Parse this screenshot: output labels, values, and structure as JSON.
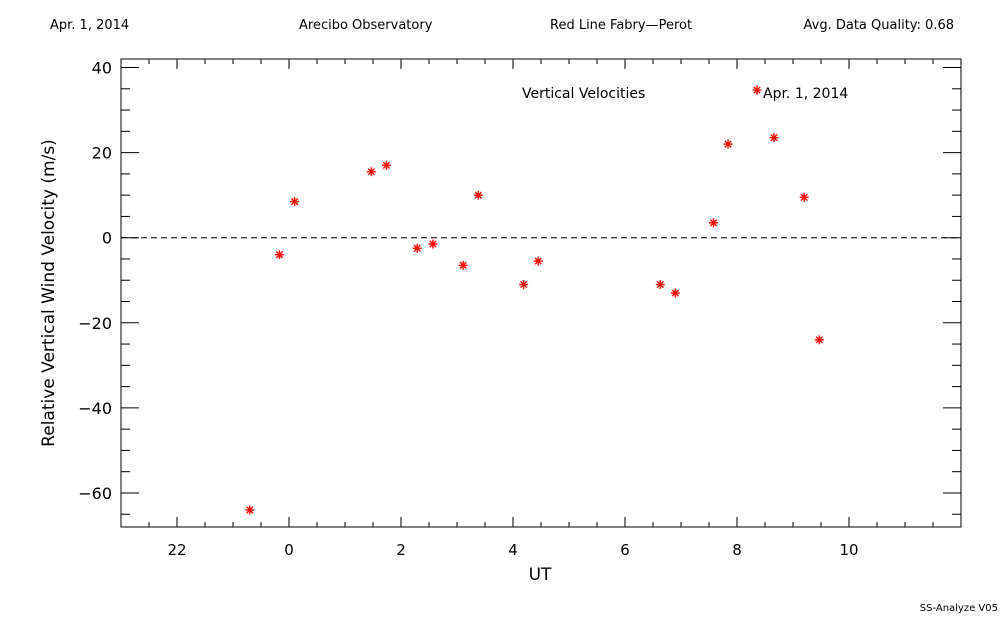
{
  "header": {
    "date": "Apr. 1, 2014",
    "site": "Arecibo Observatory",
    "instrument": "Red Line Fabry—Perot",
    "quality": "Avg. Data Quality: 0.68"
  },
  "footer": {
    "version": "SS-Analyze V05"
  },
  "chart_data": {
    "type": "scatter",
    "title": "Vertical Velocities",
    "xlabel": "UT",
    "ylabel": "Relative Vertical Wind Velocity (m/s)",
    "xlim": [
      21.0,
      36.0
    ],
    "ylim": [
      -68,
      42
    ],
    "x_ticks": [
      22,
      24,
      26,
      28,
      30,
      32,
      34
    ],
    "x_tick_labels": [
      "22",
      "0",
      "2",
      "4",
      "6",
      "8",
      "10"
    ],
    "y_ticks": [
      -60,
      -40,
      -20,
      0,
      20,
      40
    ],
    "y_tick_labels": [
      "−60",
      "−40",
      "−20",
      "0",
      "20",
      "40"
    ],
    "zero_line": true,
    "series": [
      {
        "name": "Apr. 1, 2014",
        "color": "#ff0000",
        "marker": "asterisk",
        "points": [
          {
            "x": 23.3,
            "y": -64
          },
          {
            "x": 23.83,
            "y": -4
          },
          {
            "x": 24.1,
            "y": 8.5
          },
          {
            "x": 25.47,
            "y": 15.5
          },
          {
            "x": 25.74,
            "y": 17
          },
          {
            "x": 26.29,
            "y": -2.5
          },
          {
            "x": 26.57,
            "y": -1.5
          },
          {
            "x": 27.11,
            "y": -6.5
          },
          {
            "x": 27.38,
            "y": 10
          },
          {
            "x": 28.19,
            "y": -11
          },
          {
            "x": 28.45,
            "y": -5.5
          },
          {
            "x": 30.63,
            "y": -11
          },
          {
            "x": 30.9,
            "y": -13
          },
          {
            "x": 31.58,
            "y": 3.5
          },
          {
            "x": 31.84,
            "y": 22
          },
          {
            "x": 32.66,
            "y": 23.5
          },
          {
            "x": 33.2,
            "y": 9.5
          },
          {
            "x": 33.47,
            "y": -24
          }
        ]
      }
    ]
  }
}
